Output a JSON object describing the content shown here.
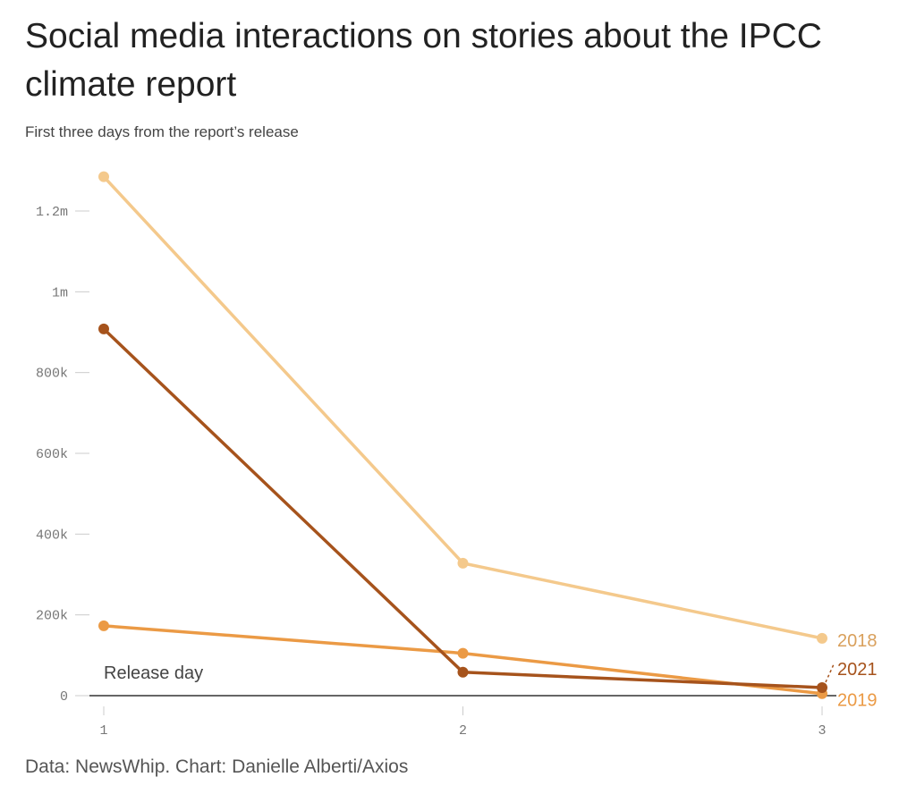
{
  "header": {
    "title": "Social media interactions on stories about the IPCC climate report",
    "subtitle": "First three days from the report’s release"
  },
  "footer": {
    "source": "Data: NewsWhip. Chart: Danielle Alberti/Axios"
  },
  "chart_data": {
    "type": "line",
    "title": "Social media interactions on stories about the IPCC climate report",
    "subtitle": "First three days from the report’s release",
    "x": [
      1,
      2,
      3
    ],
    "x_ticks": [
      {
        "value": 1,
        "label": "1"
      },
      {
        "value": 2,
        "label": "2"
      },
      {
        "value": 3,
        "label": "3"
      }
    ],
    "y_ticks": [
      {
        "value": 0,
        "label": "0"
      },
      {
        "value": 200000,
        "label": "200k"
      },
      {
        "value": 400000,
        "label": "400k"
      },
      {
        "value": 600000,
        "label": "600k"
      },
      {
        "value": 800000,
        "label": "800k"
      },
      {
        "value": 1000000,
        "label": "1m"
      },
      {
        "value": 1200000,
        "label": "1.2m"
      }
    ],
    "xlim": [
      1,
      3
    ],
    "ylim": [
      0,
      1300000
    ],
    "grid": false,
    "legend": "direct labels at line ends",
    "annotations": [
      {
        "text": "Release day",
        "x": 1,
        "y": 0
      }
    ],
    "series": [
      {
        "name": "2018",
        "color": "#f4c98c",
        "values": [
          1285000,
          328000,
          142000
        ]
      },
      {
        "name": "2021",
        "color": "#a6531c",
        "values": [
          908000,
          58000,
          20000
        ]
      },
      {
        "name": "2019",
        "color": "#eb9a45",
        "values": [
          173000,
          105000,
          5000
        ]
      }
    ]
  }
}
